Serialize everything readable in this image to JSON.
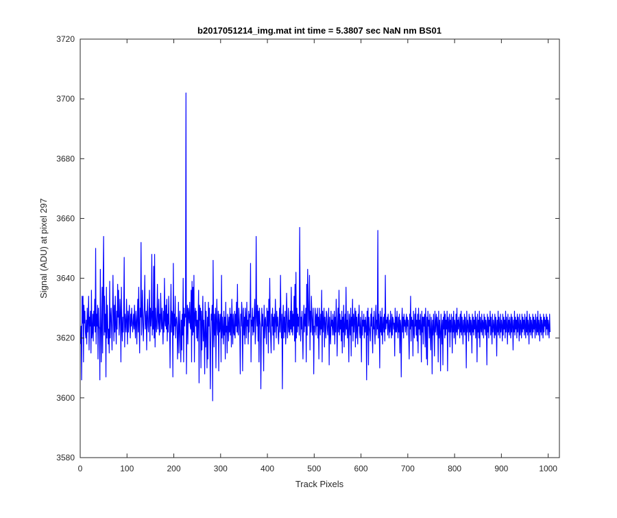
{
  "figure": {
    "background": "#ffffff"
  },
  "chart_data": {
    "type": "line",
    "title": "b2017051214_img.mat int time = 5.3807 sec  NaN nm BS01",
    "xlabel": "Track Pixels",
    "ylabel": "Signal (ADU) at pixel 297",
    "xlim": [
      0,
      1024
    ],
    "ylim": [
      3580,
      3720
    ],
    "xticks": [
      0,
      100,
      200,
      300,
      400,
      500,
      600,
      700,
      800,
      900,
      1000
    ],
    "yticks": [
      3580,
      3600,
      3620,
      3640,
      3660,
      3680,
      3700,
      3720
    ],
    "grid": false,
    "legend": "none",
    "line_color": "#0000ff",
    "axis_color": "#262626",
    "series": [
      {
        "x_start": 1,
        "x_step": 1,
        "values": [
          3618,
          3624,
          3606,
          3634,
          3625,
          3634,
          3612,
          3631,
          3625,
          3629,
          3622,
          3620,
          3626,
          3618,
          3630,
          3622,
          3626,
          3634,
          3616,
          3627,
          3624,
          3629,
          3615,
          3636,
          3620,
          3622,
          3628,
          3619,
          3629,
          3624,
          3633,
          3622,
          3650,
          3618,
          3628,
          3624,
          3631,
          3613,
          3630,
          3624,
          3623,
          3606,
          3643,
          3627,
          3612,
          3624,
          3637,
          3615,
          3639,
          3654,
          3621,
          3634,
          3622,
          3628,
          3607,
          3637,
          3620,
          3631,
          3624,
          3618,
          3623,
          3615,
          3639,
          3620,
          3626,
          3630,
          3624,
          3616,
          3627,
          3641,
          3628,
          3619,
          3631,
          3622,
          3634,
          3624,
          3618,
          3629,
          3623,
          3638,
          3627,
          3636,
          3621,
          3625,
          3633,
          3628,
          3612,
          3637,
          3624,
          3619,
          3627,
          3622,
          3630,
          3647,
          3617,
          3628,
          3625,
          3622,
          3633,
          3626,
          3618,
          3629,
          3622,
          3627,
          3631,
          3624,
          3620,
          3628,
          3624,
          3630,
          3626,
          3622,
          3625,
          3628,
          3623,
          3631,
          3624,
          3620,
          3629,
          3626,
          3618,
          3627,
          3633,
          3622,
          3637,
          3624,
          3615,
          3630,
          3627,
          3652,
          3621,
          3628,
          3636,
          3624,
          3619,
          3627,
          3630,
          3641,
          3623,
          3626,
          3629,
          3616,
          3627,
          3633,
          3624,
          3622,
          3628,
          3636,
          3619,
          3630,
          3624,
          3627,
          3648,
          3621,
          3629,
          3623,
          3644,
          3620,
          3648,
          3617,
          3630,
          3625,
          3622,
          3628,
          3638,
          3623,
          3626,
          3633,
          3621,
          3628,
          3622,
          3635,
          3627,
          3623,
          3630,
          3624,
          3618,
          3629,
          3622,
          3640,
          3626,
          3624,
          3631,
          3623,
          3633,
          3619,
          3628,
          3622,
          3634,
          3625,
          3624,
          3610,
          3627,
          3638,
          3622,
          3629,
          3628,
          3607,
          3645,
          3621,
          3628,
          3624,
          3634,
          3620,
          3626,
          3627,
          3624,
          3613,
          3623,
          3632,
          3615,
          3623,
          3629,
          3619,
          3612,
          3626,
          3616,
          3628,
          3621,
          3640,
          3612,
          3630,
          3624,
          3628,
          3627,
          3702,
          3608,
          3623,
          3631,
          3618,
          3630,
          3628,
          3625,
          3632,
          3624,
          3623,
          3636,
          3612,
          3639,
          3621,
          3637,
          3622,
          3641,
          3612,
          3628,
          3630,
          3624,
          3629,
          3620,
          3626,
          3619,
          3627,
          3636,
          3605,
          3631,
          3626,
          3630,
          3610,
          3629,
          3616,
          3625,
          3634,
          3619,
          3626,
          3621,
          3608,
          3632,
          3617,
          3629,
          3621,
          3610,
          3627,
          3613,
          3632,
          3624,
          3630,
          3621,
          3603,
          3619,
          3628,
          3626,
          3631,
          3599,
          3646,
          3624,
          3617,
          3628,
          3621,
          3630,
          3610,
          3626,
          3633,
          3623,
          3621,
          3629,
          3609,
          3628,
          3622,
          3624,
          3628,
          3612,
          3641,
          3620,
          3627,
          3623,
          3618,
          3629,
          3621,
          3627,
          3613,
          3632,
          3622,
          3624,
          3615,
          3628,
          3625,
          3619,
          3627,
          3622,
          3630,
          3621,
          3628,
          3617,
          3633,
          3626,
          3618,
          3628,
          3622,
          3621,
          3629,
          3620,
          3628,
          3624,
          3632,
          3622,
          3638,
          3622,
          3621,
          3630,
          3626,
          3622,
          3608,
          3628,
          3624,
          3632,
          3629,
          3609,
          3624,
          3630,
          3621,
          3627,
          3618,
          3630,
          3626,
          3620,
          3632,
          3624,
          3626,
          3618,
          3629,
          3622,
          3628,
          3627,
          3645,
          3612,
          3626,
          3624,
          3630,
          3621,
          3627,
          3622,
          3629,
          3633,
          3618,
          3622,
          3654,
          3627,
          3624,
          3631,
          3619,
          3629,
          3612,
          3630,
          3626,
          3624,
          3603,
          3620,
          3630,
          3624,
          3628,
          3622,
          3609,
          3631,
          3620,
          3626,
          3627,
          3622,
          3618,
          3630,
          3624,
          3629,
          3615,
          3633,
          3622,
          3640,
          3626,
          3620,
          3615,
          3628,
          3624,
          3630,
          3621,
          3627,
          3616,
          3628,
          3622,
          3633,
          3626,
          3620,
          3629,
          3624,
          3627,
          3621,
          3618,
          3625,
          3630,
          3622,
          3641,
          3626,
          3620,
          3628,
          3603,
          3625,
          3631,
          3620,
          3627,
          3622,
          3629,
          3618,
          3622,
          3635,
          3628,
          3620,
          3624,
          3630,
          3622,
          3626,
          3621,
          3629,
          3623,
          3637,
          3622,
          3629,
          3621,
          3628,
          3624,
          3634,
          3619,
          3638,
          3612,
          3642,
          3620,
          3630,
          3622,
          3628,
          3624,
          3627,
          3621,
          3657,
          3632,
          3619,
          3627,
          3623,
          3629,
          3621,
          3613,
          3626,
          3631,
          3622,
          3628,
          3624,
          3630,
          3612,
          3638,
          3621,
          3643,
          3633,
          3624,
          3627,
          3641,
          3616,
          3629,
          3622,
          3634,
          3628,
          3621,
          3626,
          3630,
          3608,
          3624,
          3622,
          3630,
          3627,
          3621,
          3628,
          3624,
          3630,
          3620,
          3627,
          3613,
          3630,
          3625,
          3621,
          3628,
          3623,
          3636,
          3612,
          3629,
          3622,
          3626,
          3630,
          3617,
          3627,
          3624,
          3620,
          3629,
          3628,
          3623,
          3621,
          3626,
          3630,
          3611,
          3627,
          3622,
          3618,
          3629,
          3624,
          3626,
          3621,
          3628,
          3624,
          3621,
          3629,
          3618,
          3627,
          3622,
          3633,
          3625,
          3614,
          3624,
          3630,
          3622,
          3636,
          3621,
          3628,
          3623,
          3626,
          3619,
          3629,
          3615,
          3627,
          3622,
          3631,
          3617,
          3624,
          3628,
          3621,
          3637,
          3623,
          3626,
          3620,
          3629,
          3622,
          3612,
          3628,
          3625,
          3621,
          3630,
          3614,
          3627,
          3624,
          3633,
          3619,
          3628,
          3622,
          3626,
          3630,
          3617,
          3629,
          3620,
          3627,
          3623,
          3618,
          3628,
          3624,
          3631,
          3622,
          3620,
          3627,
          3623,
          3612,
          3629,
          3621,
          3626,
          3624,
          3628,
          3620,
          3626,
          3622,
          3627,
          3624,
          3606,
          3629,
          3621,
          3630,
          3611,
          3627,
          3624,
          3622,
          3619,
          3628,
          3624,
          3630,
          3621,
          3615,
          3627,
          3623,
          3629,
          3622,
          3618,
          3627,
          3631,
          3621,
          3626,
          3623,
          3656,
          3620,
          3628,
          3624,
          3610,
          3629,
          3622,
          3627,
          3621,
          3630,
          3618,
          3624,
          3627,
          3622,
          3628,
          3619,
          3641,
          3623,
          3626,
          3625,
          3627,
          3621,
          3628,
          3624,
          3620,
          3626,
          3622,
          3629,
          3624,
          3620,
          3628,
          3621,
          3627,
          3626,
          3623,
          3625,
          3614,
          3630,
          3622,
          3627,
          3622,
          3629,
          3624,
          3620,
          3627,
          3622,
          3628,
          3615,
          3626,
          3624,
          3607,
          3625,
          3630,
          3622,
          3627,
          3620,
          3628,
          3624,
          3626,
          3622,
          3625,
          3628,
          3621,
          3627,
          3624,
          3626,
          3620,
          3613,
          3628,
          3623,
          3634,
          3619,
          3627,
          3624,
          3626,
          3614,
          3629,
          3622,
          3620,
          3628,
          3624,
          3630,
          3621,
          3626,
          3619,
          3628,
          3615,
          3630,
          3623,
          3626,
          3621,
          3628,
          3624,
          3612,
          3629,
          3622,
          3627,
          3618,
          3627,
          3624,
          3628,
          3617,
          3630,
          3623,
          3613,
          3627,
          3611,
          3629,
          3624,
          3626,
          3620,
          3628,
          3622,
          3616,
          3627,
          3624,
          3608,
          3626,
          3621,
          3628,
          3623,
          3614,
          3629,
          3622,
          3625,
          3628,
          3621,
          3627,
          3624,
          3612,
          3629,
          3620,
          3626,
          3622,
          3609,
          3628,
          3624,
          3618,
          3626,
          3611,
          3627,
          3623,
          3629,
          3620,
          3628,
          3621,
          3626,
          3623,
          3629,
          3609,
          3627,
          3625,
          3622,
          3628,
          3617,
          3626,
          3622,
          3628,
          3624,
          3615,
          3627,
          3622,
          3629,
          3620,
          3626,
          3624,
          3618,
          3628,
          3622,
          3630,
          3621,
          3626,
          3623,
          3627,
          3624,
          3620,
          3628,
          3622,
          3629,
          3621,
          3627,
          3624,
          3618,
          3626,
          3622,
          3628,
          3621,
          3627,
          3624,
          3610,
          3629,
          3622,
          3626,
          3624,
          3619,
          3628,
          3622,
          3627,
          3621,
          3626,
          3624,
          3615,
          3628,
          3622,
          3627,
          3621,
          3626,
          3623,
          3629,
          3620,
          3627,
          3624,
          3612,
          3628,
          3622,
          3626,
          3620,
          3629,
          3617,
          3627,
          3624,
          3622,
          3628,
          3621,
          3626,
          3625,
          3620,
          3628,
          3623,
          3627,
          3621,
          3626,
          3624,
          3611,
          3628,
          3622,
          3627,
          3620,
          3626,
          3624,
          3629,
          3621,
          3627,
          3623,
          3618,
          3628,
          3622,
          3626,
          3624,
          3620,
          3628,
          3621,
          3627,
          3624,
          3614,
          3626,
          3622,
          3629,
          3621,
          3627,
          3624,
          3620,
          3628,
          3622,
          3626,
          3624,
          3619,
          3628,
          3621,
          3627,
          3623,
          3626,
          3620,
          3629,
          3622,
          3627,
          3624,
          3618,
          3628,
          3622,
          3626,
          3621,
          3627,
          3624,
          3620,
          3628,
          3622,
          3627,
          3624,
          3616,
          3626,
          3622,
          3629,
          3621,
          3627,
          3623,
          3626,
          3620,
          3628,
          3622,
          3627,
          3624,
          3619,
          3628,
          3621,
          3626,
          3624,
          3620,
          3628,
          3622,
          3627,
          3623,
          3626,
          3621,
          3628,
          3624,
          3620,
          3627,
          3622,
          3629,
          3621,
          3626,
          3624,
          3618,
          3628,
          3622,
          3627,
          3621,
          3626,
          3624,
          3620,
          3628,
          3622,
          3627,
          3623,
          3626,
          3620,
          3628,
          3624,
          3621,
          3627,
          3622,
          3629,
          3621,
          3626,
          3624,
          3619,
          3628,
          3622,
          3627,
          3621,
          3626,
          3624,
          3620,
          3628,
          3622,
          3627,
          3624,
          3626,
          3621,
          3628,
          3623,
          3627,
          3621,
          3626,
          3624,
          3620,
          3628,
          3622
        ]
      }
    ]
  }
}
